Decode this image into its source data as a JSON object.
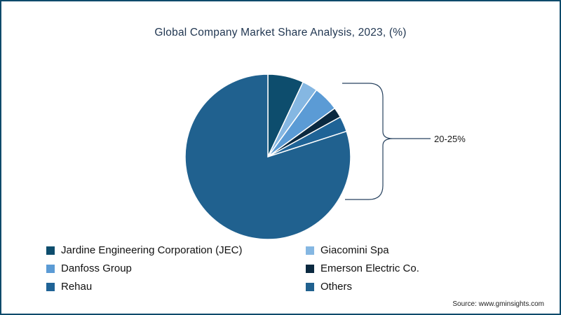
{
  "chart_data": {
    "type": "pie",
    "title": "Global Company Market Share Analysis, 2023, (%)",
    "categories": [
      "Jardine Engineering Corporation (JEC)",
      "Giacomini Spa",
      "Danfoss Group",
      "Emerson Electric Co.",
      "Rehau",
      "Others"
    ],
    "values": [
      7,
      3,
      5,
      2,
      3,
      80
    ],
    "colors": [
      "#0d4d6d",
      "#85b7e2",
      "#5b9bd5",
      "#0b2940",
      "#1f6396",
      "#20618f"
    ],
    "callout_label": "20-25%",
    "callout_note": "bracket groups all named-company slices (non-Others)",
    "legend_position": "bottom",
    "start_angle_deg": -90,
    "direction": "clockwise",
    "slice_border_color": "#ffffff"
  },
  "source": {
    "text": "Source: www.gminsights.com"
  }
}
